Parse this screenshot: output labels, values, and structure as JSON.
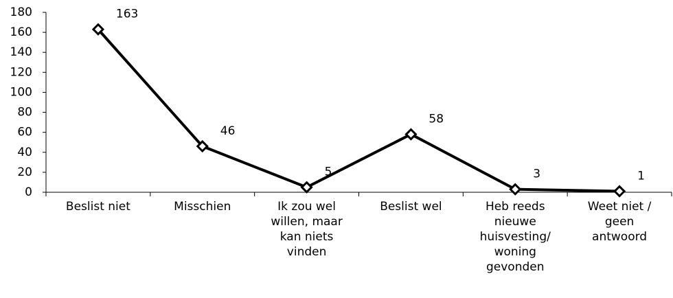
{
  "chart_data": {
    "type": "line",
    "categories": [
      "Beslist niet",
      "Misschien",
      "Ik zou wel willen, maar kan niets vinden",
      "Beslist wel",
      "Heb reeds nieuwe huisvesting/ woning gevonden",
      "Weet niet / geen antwoord"
    ],
    "values": [
      163,
      46,
      5,
      58,
      3,
      1
    ],
    "color": "#000000",
    "ylim": [
      0,
      180
    ],
    "yticks": [
      0,
      20,
      40,
      60,
      80,
      100,
      120,
      140,
      160,
      180
    ],
    "grid": false
  }
}
